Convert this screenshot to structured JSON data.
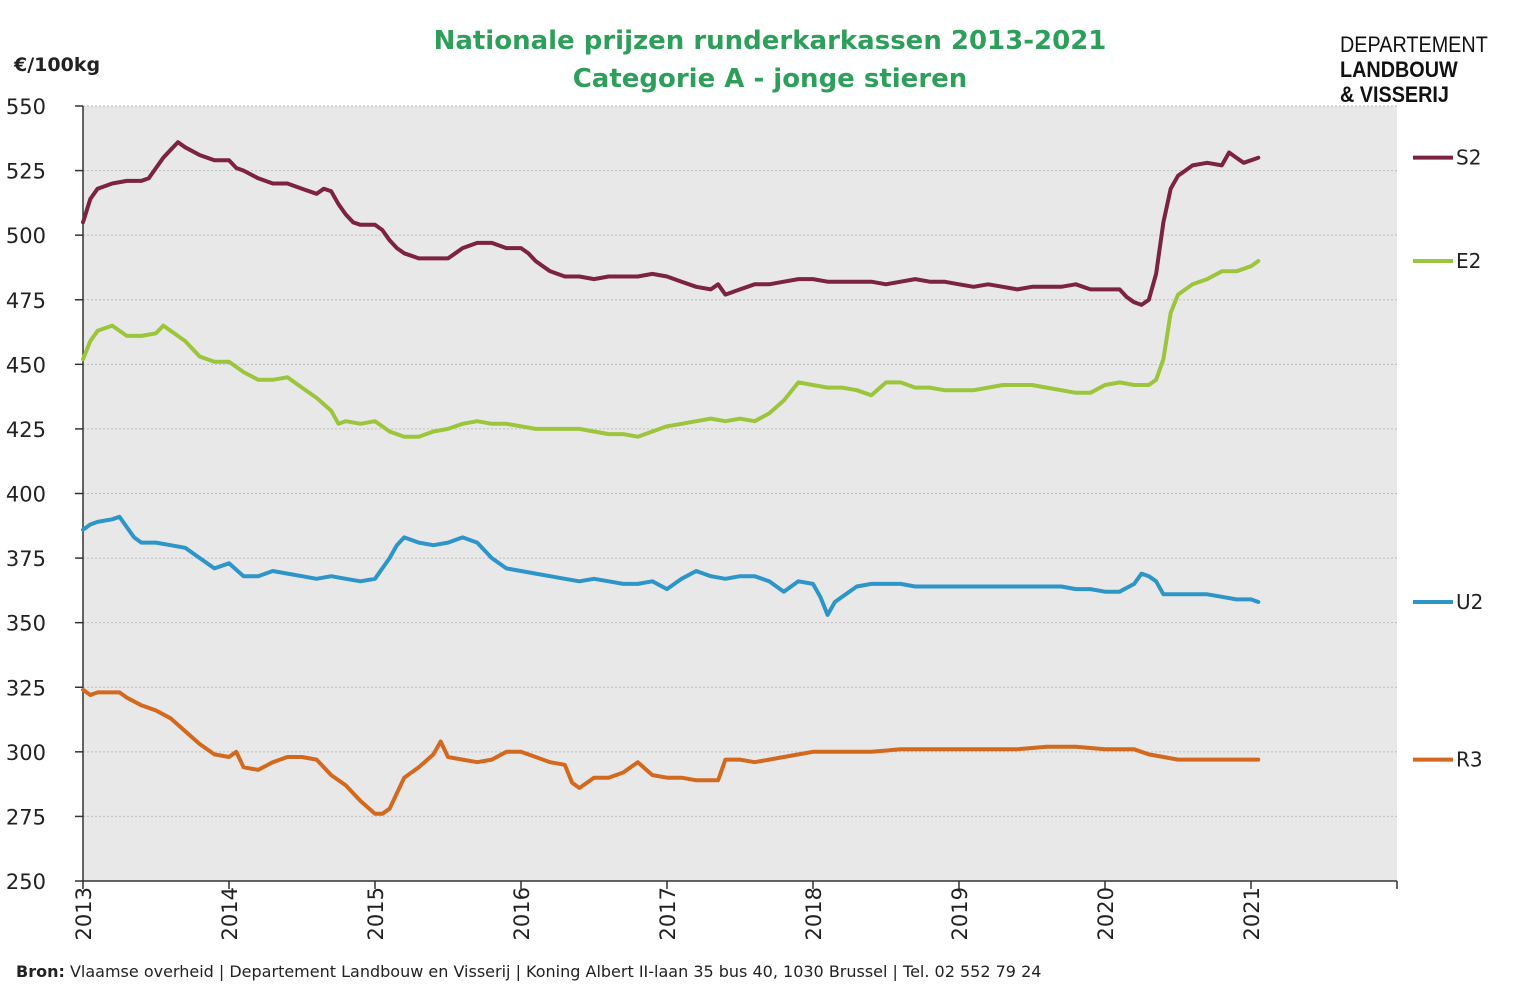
{
  "chart_data": {
    "type": "line",
    "title": "Nationale prijzen runderkarkassen 2013-2021",
    "subtitle": "Categorie A - jonge stieren",
    "ylabel": "€/100kg",
    "xlabel": "",
    "ylim": [
      250,
      550
    ],
    "yticks": [
      250,
      275,
      300,
      325,
      350,
      375,
      400,
      425,
      450,
      475,
      500,
      525,
      550
    ],
    "xlim": [
      2013,
      2022
    ],
    "xticks": [
      2013,
      2014,
      2015,
      2016,
      2017,
      2018,
      2019,
      2020,
      2021
    ],
    "grid": true,
    "legend": "right",
    "series": [
      {
        "name": "S2",
        "color": "#7B2340",
        "x": [
          2013.0,
          2013.05,
          2013.1,
          2013.2,
          2013.3,
          2013.4,
          2013.45,
          2013.5,
          2013.55,
          2013.6,
          2013.65,
          2013.7,
          2013.8,
          2013.9,
          2014.0,
          2014.05,
          2014.1,
          2014.2,
          2014.3,
          2014.4,
          2014.5,
          2014.6,
          2014.65,
          2014.7,
          2014.75,
          2014.8,
          2014.85,
          2014.9,
          2015.0,
          2015.05,
          2015.1,
          2015.15,
          2015.2,
          2015.25,
          2015.3,
          2015.4,
          2015.5,
          2015.55,
          2015.6,
          2015.7,
          2015.8,
          2015.9,
          2016.0,
          2016.05,
          2016.1,
          2016.15,
          2016.2,
          2016.25,
          2016.3,
          2016.4,
          2016.5,
          2016.6,
          2016.7,
          2016.8,
          2016.9,
          2017.0,
          2017.1,
          2017.2,
          2017.3,
          2017.35,
          2017.4,
          2017.5,
          2017.6,
          2017.7,
          2017.8,
          2017.9,
          2018.0,
          2018.1,
          2018.2,
          2018.3,
          2018.4,
          2018.5,
          2018.6,
          2018.7,
          2018.8,
          2018.9,
          2019.0,
          2019.1,
          2019.2,
          2019.3,
          2019.4,
          2019.5,
          2019.6,
          2019.7,
          2019.8,
          2019.9,
          2020.0,
          2020.1,
          2020.15,
          2020.2,
          2020.25,
          2020.3,
          2020.35,
          2020.4,
          2020.45,
          2020.5,
          2020.55,
          2020.6,
          2020.7,
          2020.8,
          2020.85,
          2020.9,
          2020.95,
          2021.0,
          2021.05
        ],
        "values": [
          505,
          514,
          518,
          520,
          521,
          521,
          522,
          526,
          530,
          533,
          536,
          534,
          531,
          529,
          529,
          526,
          525,
          522,
          520,
          520,
          518,
          516,
          518,
          517,
          512,
          508,
          505,
          504,
          504,
          502,
          498,
          495,
          493,
          492,
          491,
          491,
          491,
          493,
          495,
          497,
          497,
          495,
          495,
          493,
          490,
          488,
          486,
          485,
          484,
          484,
          483,
          484,
          484,
          484,
          485,
          484,
          482,
          480,
          479,
          481,
          477,
          479,
          481,
          481,
          482,
          483,
          483,
          482,
          482,
          482,
          482,
          481,
          482,
          483,
          482,
          482,
          481,
          480,
          481,
          480,
          479,
          480,
          480,
          480,
          481,
          479,
          479,
          479,
          476,
          474,
          473,
          475,
          485,
          505,
          518,
          523,
          525,
          527,
          528,
          527,
          532,
          530,
          528,
          529,
          530
        ]
      },
      {
        "name": "E2",
        "color": "#9BC53D",
        "x": [
          2013.0,
          2013.05,
          2013.1,
          2013.2,
          2013.3,
          2013.4,
          2013.5,
          2013.55,
          2013.6,
          2013.7,
          2013.8,
          2013.9,
          2014.0,
          2014.1,
          2014.2,
          2014.3,
          2014.4,
          2014.5,
          2014.6,
          2014.7,
          2014.75,
          2014.8,
          2014.9,
          2015.0,
          2015.1,
          2015.2,
          2015.3,
          2015.4,
          2015.5,
          2015.6,
          2015.7,
          2015.8,
          2015.9,
          2016.0,
          2016.1,
          2016.2,
          2016.3,
          2016.4,
          2016.5,
          2016.6,
          2016.7,
          2016.8,
          2016.9,
          2017.0,
          2017.1,
          2017.2,
          2017.3,
          2017.4,
          2017.5,
          2017.6,
          2017.7,
          2017.8,
          2017.9,
          2018.0,
          2018.1,
          2018.2,
          2018.3,
          2018.4,
          2018.5,
          2018.6,
          2018.7,
          2018.8,
          2018.9,
          2019.0,
          2019.1,
          2019.2,
          2019.3,
          2019.4,
          2019.5,
          2019.6,
          2019.7,
          2019.8,
          2019.9,
          2020.0,
          2020.1,
          2020.2,
          2020.3,
          2020.35,
          2020.4,
          2020.45,
          2020.5,
          2020.6,
          2020.7,
          2020.8,
          2020.9,
          2021.0,
          2021.05
        ],
        "values": [
          452,
          459,
          463,
          465,
          461,
          461,
          462,
          465,
          463,
          459,
          453,
          451,
          451,
          447,
          444,
          444,
          445,
          441,
          437,
          432,
          427,
          428,
          427,
          428,
          424,
          422,
          422,
          424,
          425,
          427,
          428,
          427,
          427,
          426,
          425,
          425,
          425,
          425,
          424,
          423,
          423,
          422,
          424,
          426,
          427,
          428,
          429,
          428,
          429,
          428,
          431,
          436,
          443,
          442,
          441,
          441,
          440,
          438,
          443,
          443,
          441,
          441,
          440,
          440,
          440,
          441,
          442,
          442,
          442,
          441,
          440,
          439,
          439,
          442,
          443,
          442,
          442,
          444,
          452,
          470,
          477,
          481,
          483,
          486,
          486,
          488,
          490
        ]
      },
      {
        "name": "U2",
        "color": "#2E95C8",
        "x": [
          2013.0,
          2013.05,
          2013.1,
          2013.2,
          2013.25,
          2013.3,
          2013.35,
          2013.4,
          2013.5,
          2013.6,
          2013.7,
          2013.8,
          2013.9,
          2014.0,
          2014.1,
          2014.2,
          2014.3,
          2014.4,
          2014.5,
          2014.6,
          2014.7,
          2014.8,
          2014.9,
          2015.0,
          2015.1,
          2015.15,
          2015.2,
          2015.3,
          2015.4,
          2015.5,
          2015.6,
          2015.7,
          2015.8,
          2015.9,
          2016.0,
          2016.1,
          2016.2,
          2016.3,
          2016.4,
          2016.5,
          2016.6,
          2016.7,
          2016.8,
          2016.9,
          2017.0,
          2017.1,
          2017.2,
          2017.3,
          2017.4,
          2017.5,
          2017.6,
          2017.7,
          2017.8,
          2017.9,
          2018.0,
          2018.05,
          2018.1,
          2018.15,
          2018.2,
          2018.3,
          2018.4,
          2018.5,
          2018.6,
          2018.7,
          2018.8,
          2018.9,
          2019.0,
          2019.1,
          2019.2,
          2019.3,
          2019.4,
          2019.5,
          2019.6,
          2019.7,
          2019.8,
          2019.9,
          2020.0,
          2020.1,
          2020.2,
          2020.25,
          2020.3,
          2020.35,
          2020.4,
          2020.5,
          2020.6,
          2020.7,
          2020.8,
          2020.9,
          2021.0,
          2021.05
        ],
        "values": [
          386,
          388,
          389,
          390,
          391,
          387,
          383,
          381,
          381,
          380,
          379,
          375,
          371,
          373,
          368,
          368,
          370,
          369,
          368,
          367,
          368,
          367,
          366,
          367,
          375,
          380,
          383,
          381,
          380,
          381,
          383,
          381,
          375,
          371,
          370,
          369,
          368,
          367,
          366,
          367,
          366,
          365,
          365,
          366,
          363,
          367,
          370,
          368,
          367,
          368,
          368,
          366,
          362,
          366,
          365,
          360,
          353,
          358,
          360,
          364,
          365,
          365,
          365,
          364,
          364,
          364,
          364,
          364,
          364,
          364,
          364,
          364,
          364,
          364,
          363,
          363,
          362,
          362,
          365,
          369,
          368,
          366,
          361,
          361,
          361,
          361,
          360,
          359,
          359,
          358
        ]
      },
      {
        "name": "R3",
        "color": "#D2691E",
        "x": [
          2013.0,
          2013.05,
          2013.1,
          2013.2,
          2013.25,
          2013.3,
          2013.4,
          2013.5,
          2013.6,
          2013.7,
          2013.8,
          2013.9,
          2014.0,
          2014.05,
          2014.1,
          2014.2,
          2014.3,
          2014.4,
          2014.5,
          2014.6,
          2014.7,
          2014.8,
          2014.9,
          2015.0,
          2015.05,
          2015.1,
          2015.2,
          2015.3,
          2015.4,
          2015.45,
          2015.5,
          2015.6,
          2015.7,
          2015.8,
          2015.9,
          2016.0,
          2016.1,
          2016.2,
          2016.3,
          2016.35,
          2016.4,
          2016.5,
          2016.6,
          2016.7,
          2016.8,
          2016.9,
          2017.0,
          2017.1,
          2017.2,
          2017.3,
          2017.35,
          2017.4,
          2017.5,
          2017.6,
          2017.7,
          2017.8,
          2017.9,
          2018.0,
          2018.2,
          2018.4,
          2018.6,
          2018.8,
          2019.0,
          2019.2,
          2019.4,
          2019.6,
          2019.8,
          2020.0,
          2020.1,
          2020.2,
          2020.3,
          2020.4,
          2020.5,
          2020.6,
          2020.7,
          2020.8,
          2020.9,
          2021.0,
          2021.05
        ],
        "values": [
          324,
          322,
          323,
          323,
          323,
          321,
          318,
          316,
          313,
          308,
          303,
          299,
          298,
          300,
          294,
          293,
          296,
          298,
          298,
          297,
          291,
          287,
          281,
          276,
          276,
          278,
          290,
          294,
          299,
          304,
          298,
          297,
          296,
          297,
          300,
          300,
          298,
          296,
          295,
          288,
          286,
          290,
          290,
          292,
          296,
          291,
          290,
          290,
          289,
          289,
          289,
          297,
          297,
          296,
          297,
          298,
          299,
          300,
          300,
          300,
          301,
          301,
          301,
          301,
          301,
          302,
          302,
          301,
          301,
          301,
          299,
          298,
          297,
          297,
          297,
          297,
          297,
          297,
          297
        ]
      }
    ]
  },
  "labels": {
    "title": "Nationale prijzen runderkarkassen 2013-2021",
    "subtitle": "Categorie A - jonge stieren",
    "ylabel": "€/100kg"
  },
  "colors": {
    "title": "#2E9E5B",
    "plot_bg": "#E8E8E8",
    "gridline": "#BDBDBD"
  },
  "logo": {
    "line1": "DEPARTEMENT",
    "line2": "LANDBOUW",
    "line3": "& VISSERIJ"
  },
  "footer": {
    "source_label": "Bron:",
    "source_text": " Vlaamse overheid | Departement Landbouw en Visserij | Koning Albert II-laan 35 bus 40, 1030 Brussel | Tel. 02 552 79 24"
  }
}
